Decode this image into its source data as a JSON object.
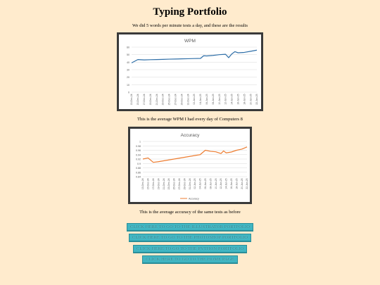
{
  "page": {
    "title": "Typing Portfolio",
    "subtitle": "We did 5 words per minute tests a day, and these are the results"
  },
  "captions": {
    "wpm": "This is the average WPM I had every day of Computers 8",
    "accuracy": "This is the average accuracy of the same tests as before"
  },
  "buttons": [
    {
      "label": "CLICK HERE TO GO TO THE ILLUSTRATOR PORTFOLIO"
    },
    {
      "label": "CLICK HERE TO GO TO THE PHOTOSHOP PORTFOLIO"
    },
    {
      "label": "CLICK HERE TO GO TO THE PYTHON PORTFOLIO"
    },
    {
      "label": "CLICK HERE TO GO TO THE HOME PAGE"
    }
  ],
  "colors": {
    "background": "#ffebcd",
    "button": "#3fb5c2",
    "wpm_line": "#2f6fa8",
    "accuracy_line": "#ed7d31"
  },
  "chart_data": [
    {
      "type": "line",
      "title": "WPM",
      "xlabel": "",
      "ylabel": "",
      "ylim": [
        0,
        60
      ],
      "yticks": [
        "0",
        "10",
        "20",
        "30",
        "40",
        "50",
        "60"
      ],
      "grid": true,
      "legend": "none",
      "categories": [
        "13-Dec-24",
        "15-Dec-24",
        "17-Dec-24",
        "19-Dec-24",
        "21-Dec-24",
        "23-Dec-24",
        "25-Dec-24",
        "27-Dec-24",
        "29-Dec-24",
        "31-Dec-24",
        "02-Jan-25",
        "04-Jan-25",
        "06-Jan-25",
        "08-Jan-25",
        "10-Jan-25",
        "12-Jan-25",
        "14-Jan-25",
        "16-Jan-25",
        "18-Jan-25",
        "20-Jan-25",
        "22-Jan-25"
      ],
      "series": [
        {
          "x": [
            0,
            1,
            2,
            3,
            4,
            5,
            6,
            7,
            8,
            9,
            10,
            11,
            11.5,
            12,
            13,
            14,
            15,
            15.5,
            16,
            16.5,
            17,
            18,
            19,
            20
          ],
          "values": [
            39,
            43.5,
            43,
            43.3,
            43.5,
            43.7,
            44,
            44.2,
            44.4,
            44.6,
            44.8,
            45,
            48.5,
            48.3,
            49,
            50,
            50.5,
            46,
            51,
            54,
            52.5,
            53,
            54.5,
            56
          ]
        }
      ]
    },
    {
      "type": "line",
      "title": "Accuracy",
      "xlabel": "",
      "ylabel": "",
      "ylim": [
        0.84,
        1
      ],
      "yticks": [
        "0.84",
        "0.86",
        "0.88",
        "0.9",
        "0.92",
        "0.94",
        "0.96",
        "0.98",
        "1"
      ],
      "grid": true,
      "legend": "bottom",
      "categories": [
        "13-Dec-24",
        "15-Dec-24",
        "17-Dec-24",
        "19-Dec-24",
        "21-Dec-24",
        "23-Dec-24",
        "25-Dec-24",
        "27-Dec-24",
        "29-Dec-24",
        "31-Dec-24",
        "02-Jan-25",
        "04-Jan-25",
        "06-Jan-25",
        "08-Jan-25",
        "10-Jan-25",
        "12-Jan-25",
        "14-Jan-25",
        "16-Jan-25",
        "18-Jan-25",
        "20-Jan-25",
        "22-Jan-25"
      ],
      "series": [
        {
          "name": "Accuracy",
          "x": [
            0,
            1,
            2,
            3,
            4,
            5,
            6,
            7,
            8,
            9,
            10,
            11,
            12,
            13,
            14,
            15,
            15.5,
            16,
            17,
            18,
            19,
            20
          ],
          "values": [
            0.92,
            0.925,
            0.905,
            0.908,
            0.912,
            0.916,
            0.92,
            0.924,
            0.928,
            0.932,
            0.936,
            0.94,
            0.96,
            0.955,
            0.953,
            0.945,
            0.957,
            0.948,
            0.952,
            0.96,
            0.965,
            0.975
          ]
        }
      ]
    }
  ]
}
